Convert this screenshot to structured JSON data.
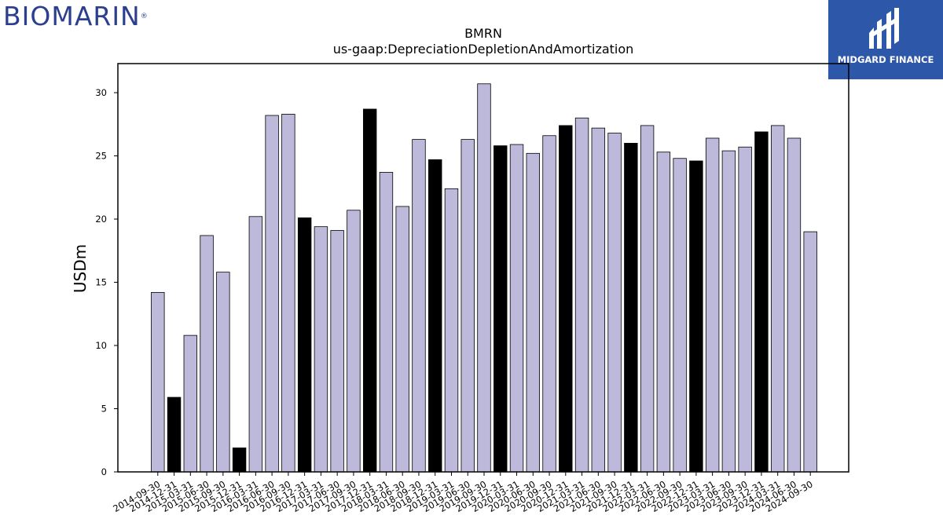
{
  "logos": {
    "left": "BIOMARIN",
    "left_mark": "®",
    "right": "MIDGARD FINANCE"
  },
  "chart_data": {
    "type": "bar",
    "title": "BMRN",
    "subtitle": "us-gaap:DepreciationDepletionAndAmortization",
    "xlabel": "",
    "ylabel": "USDm",
    "ylim": [
      0,
      32.3
    ],
    "yticks": [
      0,
      5,
      10,
      15,
      20,
      25,
      30
    ],
    "grid": false,
    "colors": {
      "bar": "#bcb9da",
      "bar_q4": "#000000",
      "edge": "#000000"
    },
    "categories": [
      "2014-09-30",
      "2014-12-31",
      "2015-03-31",
      "2015-06-30",
      "2015-09-30",
      "2015-12-31",
      "2016-03-31",
      "2016-06-30",
      "2016-09-30",
      "2016-12-31",
      "2017-03-31",
      "2017-06-30",
      "2017-09-30",
      "2017-12-31",
      "2018-03-31",
      "2018-06-30",
      "2018-09-30",
      "2018-12-31",
      "2019-03-31",
      "2019-06-30",
      "2019-09-30",
      "2019-12-31",
      "2020-03-31",
      "2020-06-30",
      "2020-09-30",
      "2020-12-31",
      "2021-03-31",
      "2021-06-30",
      "2021-09-30",
      "2021-12-31",
      "2022-03-31",
      "2022-06-30",
      "2022-09-30",
      "2022-12-31",
      "2023-03-31",
      "2023-06-30",
      "2023-09-30",
      "2023-12-31",
      "2024-03-31",
      "2024-06-30",
      "2024-09-30"
    ],
    "values": [
      14.2,
      5.9,
      10.8,
      18.7,
      15.8,
      1.9,
      20.2,
      28.2,
      28.3,
      20.1,
      19.4,
      19.1,
      20.7,
      28.7,
      23.7,
      21.0,
      26.3,
      24.7,
      22.4,
      26.3,
      30.7,
      25.8,
      25.9,
      25.2,
      26.6,
      27.4,
      28.0,
      27.2,
      26.8,
      26.0,
      27.4,
      25.3,
      24.8,
      24.6,
      26.4,
      25.4,
      25.7,
      26.9,
      27.4,
      26.4,
      19.0
    ]
  }
}
